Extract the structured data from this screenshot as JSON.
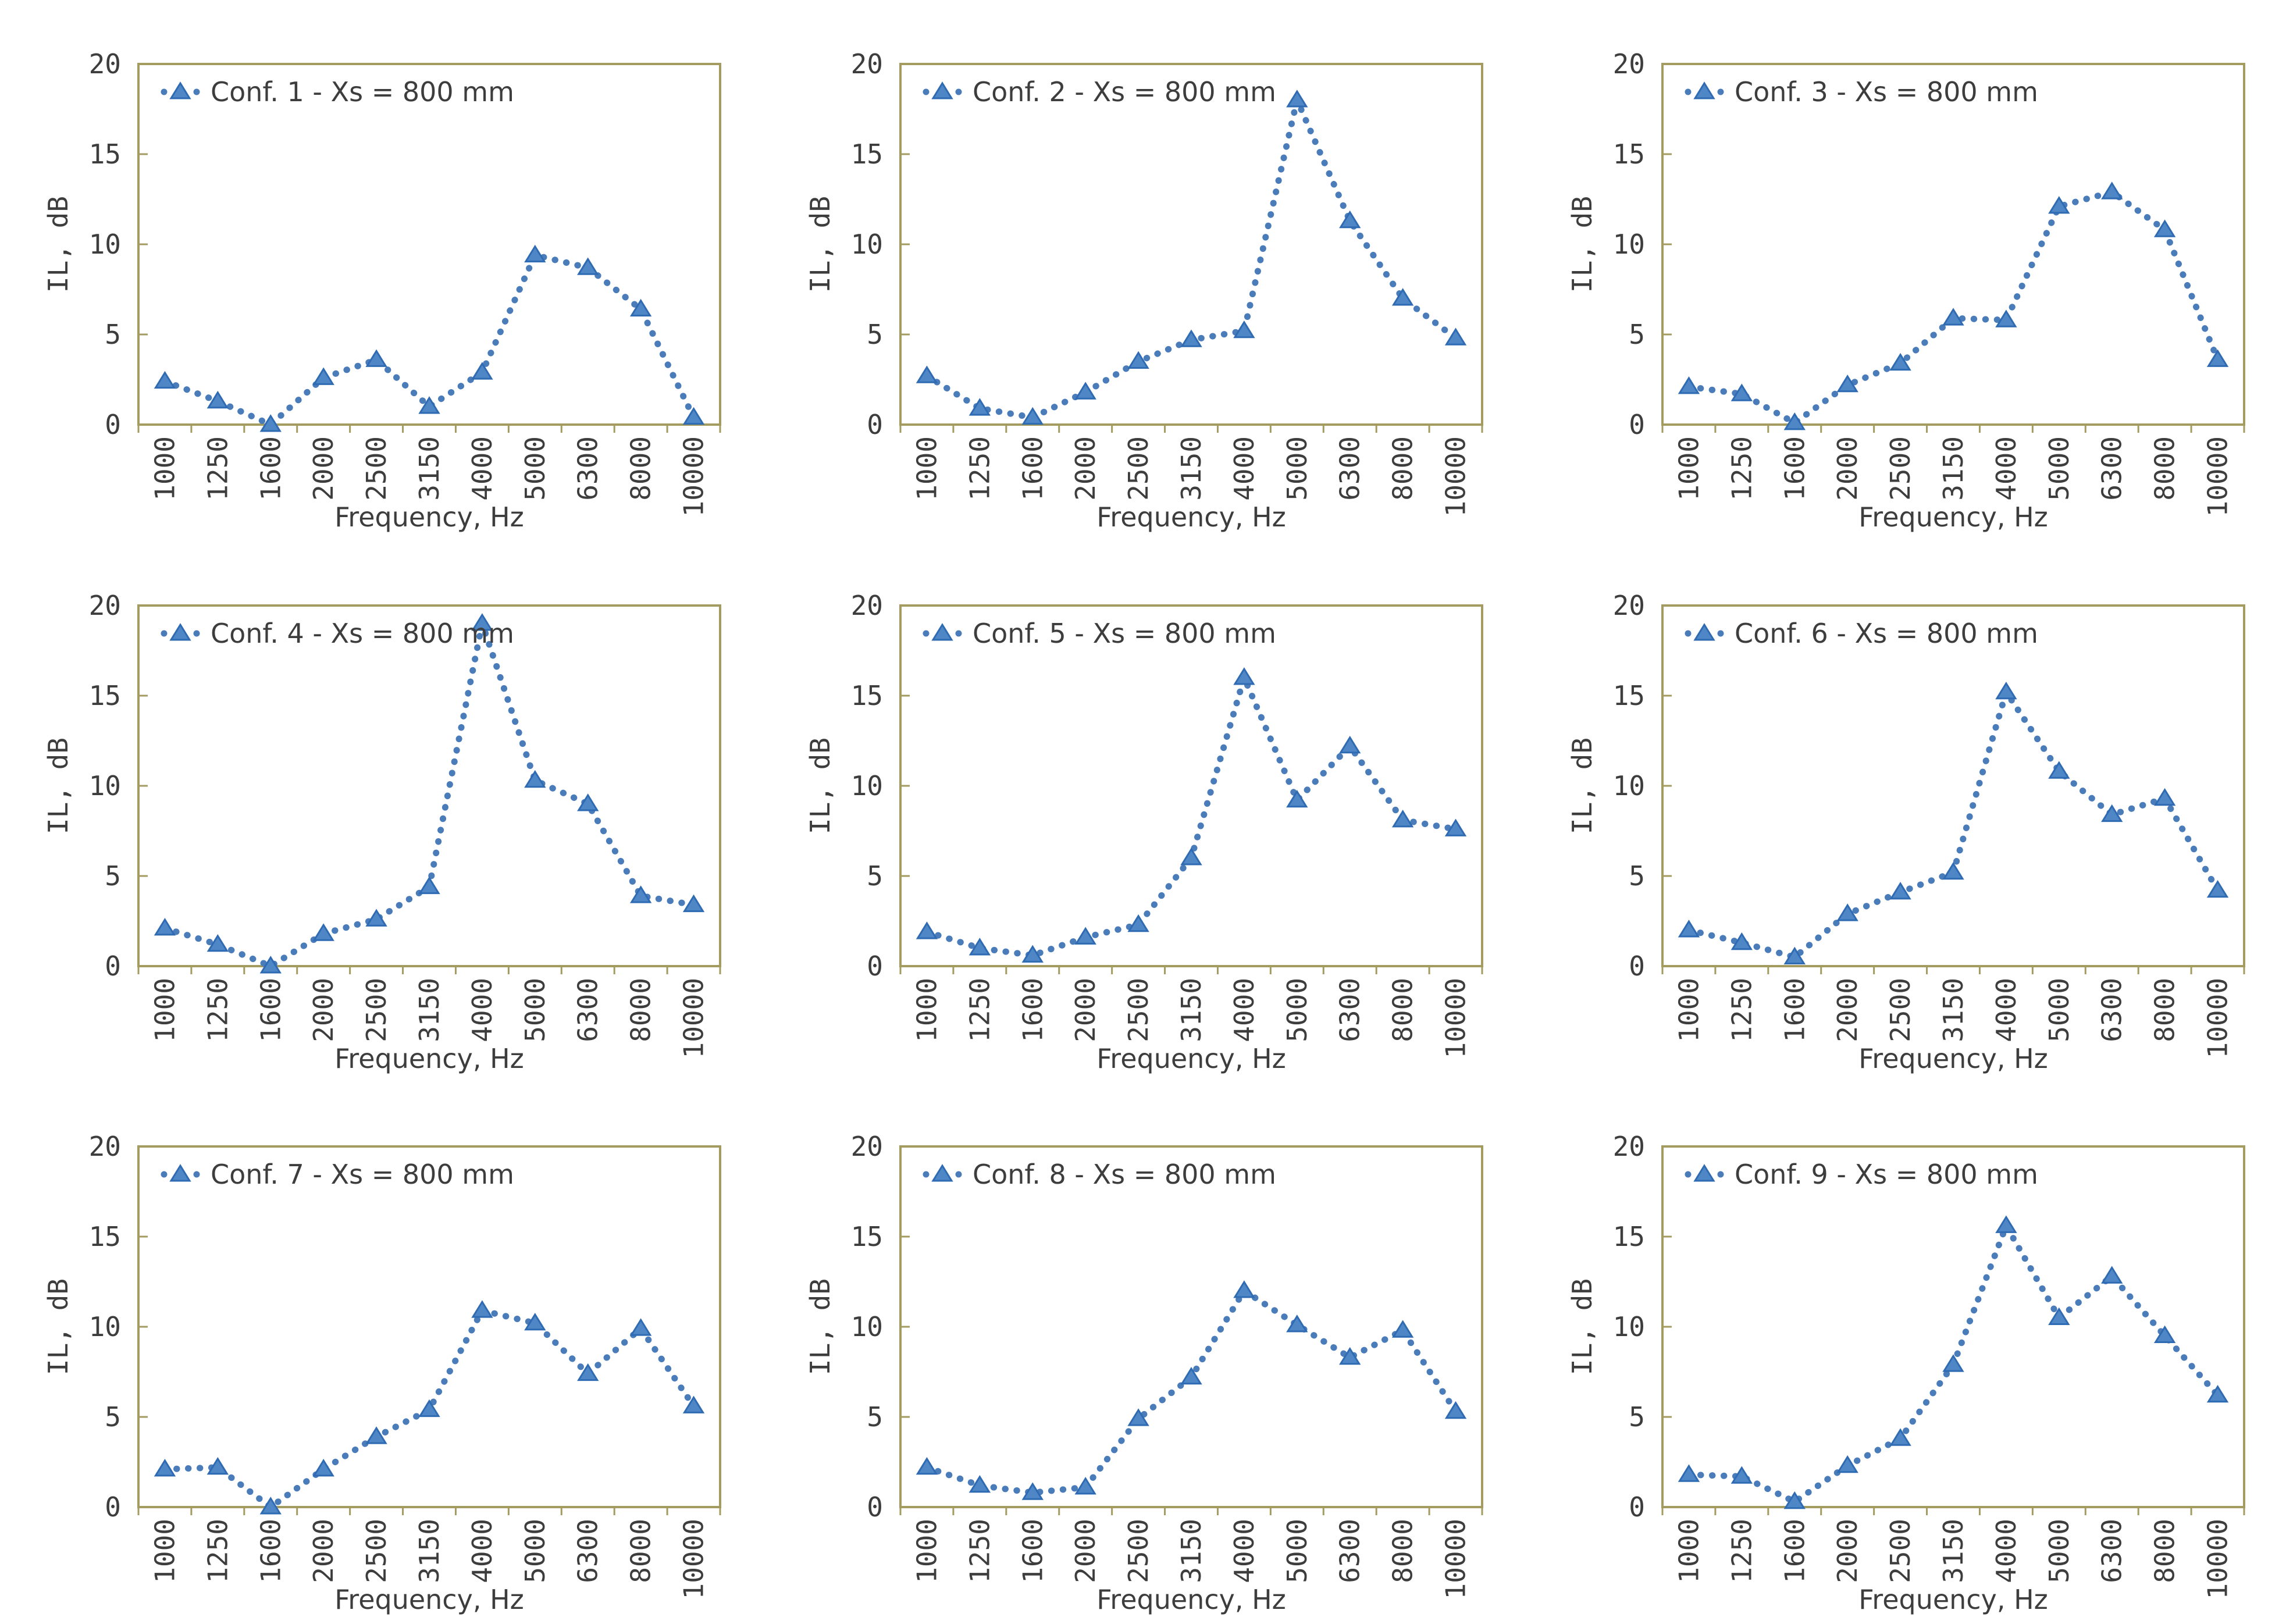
{
  "styles": {
    "background": "#ffffff",
    "series_color": "#4a7cba",
    "marker_fill": "#4e86c6",
    "marker_stroke": "#2f6bb3",
    "plot_border_color": "#a39b60",
    "text_color": "#3d3d3d"
  },
  "axes": {
    "xlabel": "Frequency, Hz",
    "ylabel": "IL, dB",
    "ylim": [
      0,
      20
    ],
    "yticks": [
      0,
      5,
      10,
      15,
      20
    ],
    "grid": "off",
    "legend_position": "top-left-inside"
  },
  "categories": [
    "1000",
    "1250",
    "1600",
    "2000",
    "2500",
    "3150",
    "4000",
    "5000",
    "6300",
    "8000",
    "10000"
  ],
  "chart_data": [
    {
      "type": "line",
      "legend": "Conf. 1 - Xs = 800 mm",
      "values": [
        2.4,
        1.3,
        0.0,
        2.6,
        3.6,
        1.0,
        2.9,
        9.4,
        8.7,
        6.4,
        0.4
      ]
    },
    {
      "type": "line",
      "legend": "Conf. 2 - Xs = 800 mm",
      "values": [
        2.7,
        0.9,
        0.4,
        1.8,
        3.5,
        4.7,
        5.2,
        18.0,
        11.3,
        7.0,
        4.8
      ]
    },
    {
      "type": "line",
      "legend": "Conf. 3 - Xs = 800 mm",
      "values": [
        2.1,
        1.7,
        0.1,
        2.2,
        3.4,
        5.9,
        5.8,
        12.1,
        12.9,
        10.8,
        3.6
      ]
    },
    {
      "type": "line",
      "legend": "Conf. 4 - Xs = 800 mm",
      "values": [
        2.1,
        1.2,
        0.0,
        1.8,
        2.6,
        4.4,
        19.0,
        10.3,
        9.0,
        3.9,
        3.4
      ]
    },
    {
      "type": "line",
      "legend": "Conf. 5 - Xs = 800 mm",
      "values": [
        1.9,
        1.0,
        0.6,
        1.6,
        2.3,
        6.0,
        16.0,
        9.2,
        12.2,
        8.1,
        7.6
      ]
    },
    {
      "type": "line",
      "legend": "Conf. 6 - Xs = 800 mm",
      "values": [
        2.0,
        1.3,
        0.5,
        2.9,
        4.1,
        5.2,
        15.2,
        10.8,
        8.4,
        9.3,
        4.2
      ]
    },
    {
      "type": "line",
      "legend": "Conf. 7 - Xs = 800 mm",
      "values": [
        2.1,
        2.2,
        0.0,
        2.1,
        3.9,
        5.4,
        10.9,
        10.2,
        7.4,
        9.9,
        5.6
      ]
    },
    {
      "type": "line",
      "legend": "Conf. 8 - Xs = 800 mm",
      "values": [
        2.2,
        1.2,
        0.8,
        1.1,
        4.9,
        7.2,
        12.0,
        10.1,
        8.3,
        9.8,
        5.3
      ]
    },
    {
      "type": "line",
      "legend": "Conf. 9 - Xs = 800 mm",
      "values": [
        1.8,
        1.7,
        0.3,
        2.3,
        3.8,
        7.9,
        15.6,
        10.5,
        12.8,
        9.5,
        6.2
      ]
    }
  ]
}
